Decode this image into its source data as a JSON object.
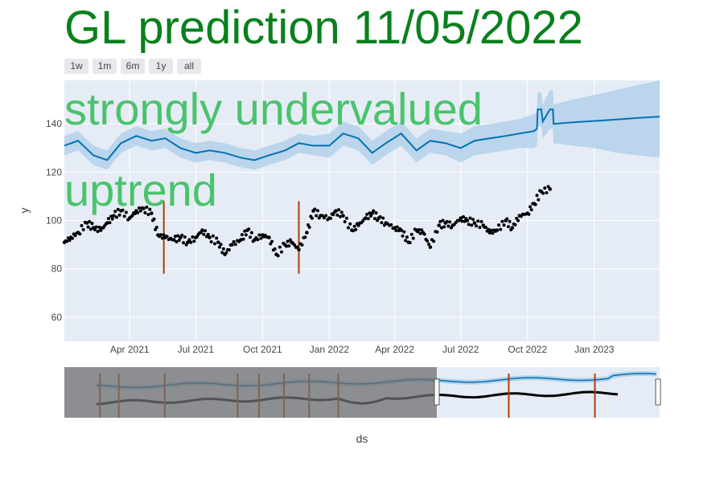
{
  "title": "GL prediction 11/05/2022",
  "range_buttons": [
    "1w",
    "1m",
    "6m",
    "1y",
    "all"
  ],
  "colors": {
    "plot_bg": "#e5ecf6",
    "forecast_line": "#0072b2",
    "uncertainty_band": "#b3d1ea",
    "actuals": "#000000",
    "changepoints": "#b03a0a",
    "annotation": "#3dbf60",
    "title": "#0a801d"
  },
  "chart_data": {
    "type": "line",
    "title": "GL prediction 11/05/2022",
    "xlabel": "ds",
    "ylabel": "y",
    "xlim": [
      "2021-01-01",
      "2023-04-01"
    ],
    "ylim": [
      50,
      158
    ],
    "x_ticks": [
      "Apr 2021",
      "Jul 2021",
      "Oct 2021",
      "Jan 2022",
      "Apr 2022",
      "Jul 2022",
      "Oct 2022",
      "Jan 2023"
    ],
    "x_tick_dates": [
      "2021-04-01",
      "2021-07-01",
      "2021-10-01",
      "2022-01-01",
      "2022-04-01",
      "2022-07-01",
      "2022-10-01",
      "2023-01-01"
    ],
    "y_ticks": [
      60,
      80,
      100,
      120,
      140
    ],
    "grid": true,
    "annotations": [
      "strongly undervalued",
      "uptrend"
    ],
    "series": [
      {
        "name": "yhat",
        "style": "line",
        "x": [
          "2021-01-01",
          "2021-01-20",
          "2021-02-10",
          "2021-03-01",
          "2021-03-20",
          "2021-04-10",
          "2021-05-01",
          "2021-05-20",
          "2021-06-10",
          "2021-07-01",
          "2021-07-20",
          "2021-08-10",
          "2021-09-01",
          "2021-09-20",
          "2021-10-10",
          "2021-11-01",
          "2021-11-20",
          "2021-12-10",
          "2022-01-01",
          "2022-01-20",
          "2022-02-10",
          "2022-03-01",
          "2022-03-20",
          "2022-04-10",
          "2022-05-01",
          "2022-05-20",
          "2022-06-10",
          "2022-07-01",
          "2022-07-20",
          "2022-08-10",
          "2022-09-01",
          "2022-09-20",
          "2022-10-10",
          "2022-10-14",
          "2022-10-15",
          "2022-10-20",
          "2022-10-22",
          "2022-11-01",
          "2022-11-05",
          "2022-11-06",
          "2022-12-01",
          "2023-01-01",
          "2023-02-01",
          "2023-03-01",
          "2023-04-01"
        ],
        "y": [
          131,
          133,
          127,
          125,
          132,
          135,
          133,
          134,
          130,
          128,
          129,
          128,
          126,
          125,
          127,
          129,
          132,
          131,
          131,
          136,
          134,
          128,
          132,
          136,
          129,
          133,
          132,
          130,
          133,
          134,
          135,
          136,
          137,
          138,
          146,
          146,
          141,
          146,
          146,
          140,
          140.6,
          141.2,
          141.8,
          142.4,
          143
        ],
        "lower": [
          127,
          129,
          123,
          121,
          128,
          131,
          129,
          130,
          126,
          124,
          125,
          124,
          122,
          121,
          123,
          125,
          128,
          127,
          126,
          131,
          129,
          123,
          127,
          131,
          124,
          128,
          127,
          124,
          127,
          128,
          129,
          130,
          130,
          131,
          139,
          139,
          134,
          138,
          138,
          132,
          131,
          130,
          128,
          127,
          126
        ],
        "upper": [
          135,
          137,
          131,
          129,
          136,
          139,
          137,
          138,
          134,
          132,
          133,
          132,
          130,
          129,
          131,
          133,
          136,
          135,
          136,
          141,
          139,
          133,
          137,
          141,
          134,
          138,
          137,
          136,
          139,
          140,
          141,
          142,
          144,
          145,
          153,
          153,
          148,
          154,
          154,
          148,
          150,
          152,
          154,
          156,
          158
        ]
      },
      {
        "name": "y",
        "style": "markers",
        "x": [
          "2021-01-01",
          "2021-01-10",
          "2021-01-20",
          "2021-02-01",
          "2021-02-10",
          "2021-02-20",
          "2021-03-01",
          "2021-03-10",
          "2021-03-20",
          "2021-04-01",
          "2021-04-10",
          "2021-04-20",
          "2021-05-01",
          "2021-05-10",
          "2021-05-20",
          "2021-06-01",
          "2021-06-10",
          "2021-06-20",
          "2021-07-01",
          "2021-07-10",
          "2021-07-20",
          "2021-08-01",
          "2021-08-10",
          "2021-08-20",
          "2021-09-01",
          "2021-09-10",
          "2021-09-20",
          "2021-10-01",
          "2021-10-10",
          "2021-10-20",
          "2021-11-01",
          "2021-11-10",
          "2021-11-20",
          "2021-12-01",
          "2021-12-10",
          "2021-12-20",
          "2022-01-01",
          "2022-01-10",
          "2022-01-20",
          "2022-02-01",
          "2022-02-10",
          "2022-02-20",
          "2022-03-01",
          "2022-03-10",
          "2022-03-20",
          "2022-04-01",
          "2022-04-10",
          "2022-04-20",
          "2022-05-01",
          "2022-05-10",
          "2022-05-20",
          "2022-06-01",
          "2022-06-10",
          "2022-06-20",
          "2022-07-01",
          "2022-07-10",
          "2022-07-20",
          "2022-08-01",
          "2022-08-10",
          "2022-08-20",
          "2022-09-01",
          "2022-09-10",
          "2022-09-20",
          "2022-10-01",
          "2022-10-10",
          "2022-10-20",
          "2022-11-01"
        ],
        "y": [
          91,
          93,
          95,
          99,
          97,
          96,
          99,
          102,
          104,
          101,
          104,
          105,
          103,
          94,
          93,
          92,
          93,
          91,
          93,
          96,
          93,
          91,
          86,
          90,
          92,
          96,
          92,
          94,
          93,
          86,
          90,
          91,
          88,
          95,
          104,
          102,
          101,
          104,
          102,
          96,
          98,
          101,
          103,
          101,
          99,
          97,
          96,
          91,
          96,
          95,
          89,
          98,
          99,
          98,
          101,
          100,
          99,
          98,
          95,
          96,
          100,
          97,
          102,
          103,
          107,
          112,
          113
        ]
      }
    ],
    "changepoints": [
      "2021-05-18",
      "2021-11-20"
    ]
  },
  "navigator": {
    "selected_range": [
      "2021-01-01",
      "2023-04-01"
    ],
    "changepoints_overview": [
      "2018-12-10",
      "2019-02-01",
      "2019-06-10",
      "2020-01-01",
      "2020-03-01",
      "2020-05-10",
      "2020-07-20",
      "2020-10-10",
      "2022-02-01",
      "2022-10-01"
    ]
  }
}
